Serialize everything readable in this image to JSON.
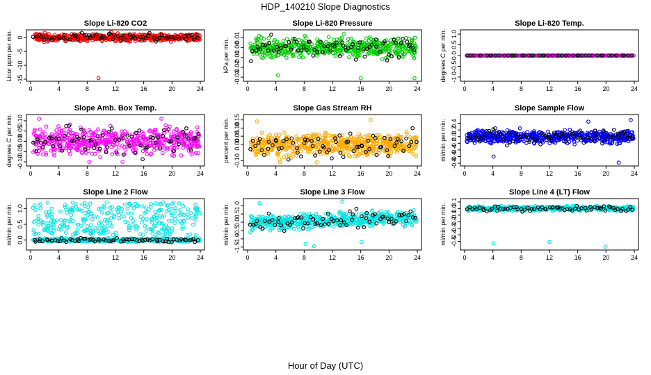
{
  "figure": {
    "title": "HDP_140210  Slope Diagnostics",
    "xlabel": "Hour of Day (UTC)"
  },
  "chart_data": [
    {
      "type": "scatter",
      "title": "Slope Li-820 CO2",
      "ylabel": "Licor ppm per min.",
      "xlim": [
        0,
        24
      ],
      "ylim": [
        -15,
        2
      ],
      "yticks": [
        -15,
        -10,
        -5,
        0
      ],
      "ytick_labels": [
        "-15",
        "-10",
        "-5",
        "0"
      ],
      "color": "#ff0000",
      "band": 0.9,
      "n": 520,
      "n_black": 70,
      "seed": 11,
      "outliers": [
        [
          2.5,
          2.2
        ],
        [
          9.6,
          -14.6
        ],
        [
          11.4,
          2.0
        ],
        [
          17.8,
          0.6
        ],
        [
          23.5,
          0.2
        ]
      ]
    },
    {
      "type": "scatter",
      "title": "Slope Li-820 Pressure",
      "ylabel": "kPa per min.",
      "xlim": [
        0,
        24
      ],
      "ylim": [
        -0.032,
        0.016
      ],
      "yticks": [
        -0.03,
        -0.02,
        -0.01,
        0.0,
        0.01
      ],
      "ytick_labels": [
        "-0.03",
        "-0.02",
        "-0.01",
        "0.00",
        "0.01"
      ],
      "color": "#00cc00",
      "band": 0.007,
      "n": 520,
      "n_black": 70,
      "seed": 23,
      "outliers": [
        [
          1.6,
          0.012
        ],
        [
          4.3,
          -0.028
        ],
        [
          8.1,
          0.012
        ],
        [
          13.6,
          0.014
        ],
        [
          16.0,
          -0.031
        ],
        [
          23.6,
          -0.031
        ]
      ]
    },
    {
      "type": "scatter",
      "title": "Slope Li-820 Temp.",
      "ylabel": "degrees C per min.",
      "xlim": [
        0,
        24
      ],
      "ylim": [
        -1.1,
        1.1
      ],
      "yticks": [
        -1.0,
        -0.5,
        0.0,
        0.5,
        1.0
      ],
      "ytick_labels": [
        "-1.0",
        "-0.5",
        "0.0",
        "0.5",
        "1.0"
      ],
      "color": "#cc00cc",
      "band": 0.0,
      "n": 140,
      "n_black": 48,
      "seed": 31,
      "regular": true,
      "outliers": []
    },
    {
      "type": "scatter",
      "title": "Slope Amb. Box Temp.",
      "ylabel": "degrees C per min.",
      "xlim": [
        0,
        24
      ],
      "ylim": [
        -0.11,
        0.12
      ],
      "yticks": [
        -0.1,
        -0.05,
        0.0,
        0.05,
        0.1
      ],
      "ytick_labels": [
        "-0.10",
        "-0.05",
        "0.00",
        "0.05",
        "0.10"
      ],
      "color": "#ff00ff",
      "band": 0.045,
      "n": 520,
      "n_black": 70,
      "seed": 41,
      "outliers": [
        [
          1.2,
          0.11
        ],
        [
          18.5,
          0.11
        ],
        [
          8.3,
          -0.1
        ],
        [
          13.0,
          -0.1
        ]
      ]
    },
    {
      "type": "scatter",
      "title": "Slope Gas Stream RH",
      "ylabel": "percent per min.",
      "xlim": [
        0,
        24
      ],
      "ylim": [
        -0.12,
        0.17
      ],
      "yticks": [
        -0.1,
        0.0,
        0.05,
        0.1,
        0.15
      ],
      "ytick_labels": [
        "-0.10",
        "0.00",
        "0.05",
        "0.10",
        "0.15"
      ],
      "color": "#ffaa00",
      "band": 0.05,
      "n": 560,
      "n_black": 70,
      "seed": 53,
      "outliers": [
        [
          1.3,
          0.14
        ],
        [
          17.4,
          0.15
        ],
        [
          4.6,
          -0.11
        ],
        [
          9.8,
          -0.11
        ]
      ]
    },
    {
      "type": "scatter",
      "title": "Slope Sample Flow",
      "ylabel": "ml/min per min.",
      "xlim": [
        0,
        24
      ],
      "ylim": [
        -0.82,
        0.6
      ],
      "yticks": [
        -0.8,
        -0.6,
        -0.4,
        -0.2,
        0.0,
        0.2,
        0.4
      ],
      "ytick_labels": [
        "-0.8",
        "-0.6",
        "-0.4",
        "-0.2",
        "0.0",
        "0.2",
        "0.4"
      ],
      "color": "#0000ff",
      "band": 0.14,
      "n": 560,
      "n_black": 70,
      "seed": 67,
      "outliers": [
        [
          4.1,
          -0.6
        ],
        [
          21.8,
          -0.78
        ],
        [
          23.5,
          0.5
        ],
        [
          17.5,
          0.45
        ]
      ]
    },
    {
      "type": "scatter",
      "title": "Slope Line 2 Flow",
      "ylabel": "ml/min per min.",
      "xlim": [
        0,
        24
      ],
      "ylim": [
        -0.25,
        1.25
      ],
      "yticks": [
        0.0,
        0.5,
        1.0
      ],
      "ytick_labels": [
        "0.0",
        "0.5",
        "1.0"
      ],
      "color": "#00e5e5",
      "band": 0.04,
      "n": 380,
      "n_black": 70,
      "seed": 79,
      "upper": [
        0.15,
        1.2
      ],
      "n_upper": 300,
      "outliers": []
    },
    {
      "type": "scatter",
      "title": "Slope Line 3 Flow",
      "ylabel": "ml/min per min.",
      "xlim": [
        0,
        24
      ],
      "ylim": [
        -1.55,
        1.3
      ],
      "yticks": [
        -1.5,
        -1.0,
        -0.5,
        0.0,
        0.5,
        1.0
      ],
      "ytick_labels": [
        "-1.5",
        "-1.0",
        "-0.5",
        "0.0",
        "0.5",
        "1.0"
      ],
      "color": "#00e5e5",
      "band": 0.32,
      "n": 520,
      "n_black": 70,
      "seed": 89,
      "trend": 0.4,
      "outliers": [
        [
          1.7,
          1.15
        ],
        [
          9.4,
          -1.45
        ],
        [
          13.4,
          1.25
        ],
        [
          16.1,
          -1.2
        ],
        [
          8.2,
          -1.3
        ]
      ]
    },
    {
      "type": "scatter",
      "title": "Slope Line 4 (LT) Flow",
      "ylabel": "ml/min per min.",
      "xlim": [
        0,
        24
      ],
      "ylim": [
        -0.6,
        0.12
      ],
      "yticks": [
        -0.5,
        -0.4,
        -0.3,
        -0.2,
        -0.1,
        0.0,
        0.1
      ],
      "ytick_labels": [
        "-0.5",
        "-0.4",
        "-0.3",
        "-0.2",
        "-0.1",
        "0.0",
        "0.1"
      ],
      "color": "#00e5e5",
      "band": 0.025,
      "n": 440,
      "n_black": 70,
      "seed": 97,
      "outliers": [
        [
          4.1,
          -0.53
        ],
        [
          12.0,
          -0.51
        ],
        [
          19.9,
          -0.58
        ]
      ]
    }
  ],
  "x_tick_values": [
    0,
    4,
    8,
    12,
    16,
    20,
    24
  ],
  "x_tick_labels": [
    "0",
    "4",
    "8",
    "12",
    "16",
    "20",
    "24"
  ]
}
